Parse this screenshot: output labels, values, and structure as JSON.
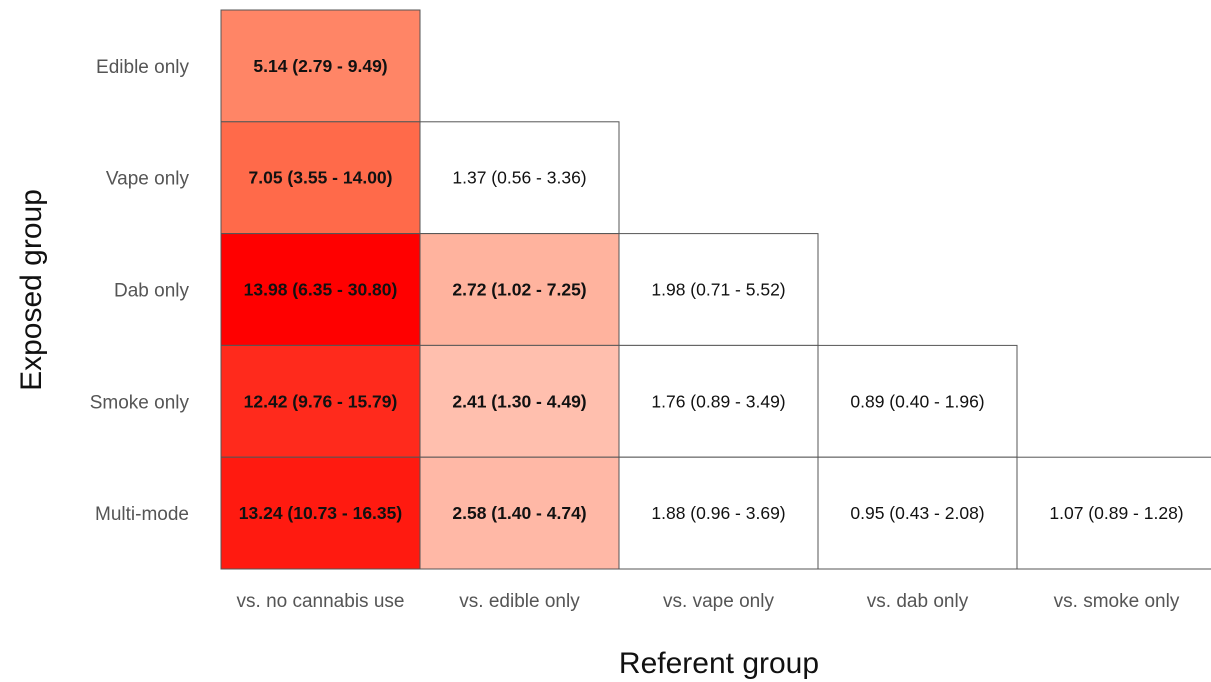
{
  "chart_data": {
    "type": "heatmap",
    "xlabel": "Referent group",
    "ylabel": "Exposed group",
    "columns": [
      "vs. no cannabis use",
      "vs. edible only",
      "vs. vape only",
      "vs. dab only",
      "vs. smoke only"
    ],
    "rows": [
      "Edible only",
      "Vape only",
      "Dab only",
      "Smoke only",
      "Multi-mode"
    ],
    "cells": [
      {
        "row": 0,
        "col": 0,
        "label": "5.14 (2.79 - 9.49)",
        "value": 5.14,
        "fill": "#ff8566",
        "bold": true
      },
      {
        "row": 1,
        "col": 0,
        "label": "7.05 (3.55 - 14.00)",
        "value": 7.05,
        "fill": "#ff6a4a",
        "bold": true
      },
      {
        "row": 1,
        "col": 1,
        "label": "1.37 (0.56 - 3.36)",
        "value": 1.37,
        "fill": "#ffffff",
        "bold": false
      },
      {
        "row": 2,
        "col": 0,
        "label": "13.98 (6.35 - 30.80)",
        "value": 13.98,
        "fill": "#ff0000",
        "bold": true
      },
      {
        "row": 2,
        "col": 1,
        "label": "2.72 (1.02 - 7.25)",
        "value": 2.72,
        "fill": "#ffb39e",
        "bold": true
      },
      {
        "row": 2,
        "col": 2,
        "label": "1.98 (0.71 - 5.52)",
        "value": 1.98,
        "fill": "#ffffff",
        "bold": false
      },
      {
        "row": 3,
        "col": 0,
        "label": "12.42 (9.76 - 15.79)",
        "value": 12.42,
        "fill": "#ff2a1c",
        "bold": true
      },
      {
        "row": 3,
        "col": 1,
        "label": "2.41 (1.30 - 4.49)",
        "value": 2.41,
        "fill": "#ffbfae",
        "bold": true
      },
      {
        "row": 3,
        "col": 2,
        "label": "1.76 (0.89 - 3.49)",
        "value": 1.76,
        "fill": "#ffffff",
        "bold": false
      },
      {
        "row": 3,
        "col": 3,
        "label": "0.89 (0.40 - 1.96)",
        "value": 0.89,
        "fill": "#ffffff",
        "bold": false
      },
      {
        "row": 4,
        "col": 0,
        "label": "13.24 (10.73 - 16.35)",
        "value": 13.24,
        "fill": "#ff1a10",
        "bold": true
      },
      {
        "row": 4,
        "col": 1,
        "label": "2.58 (1.40 - 4.74)",
        "value": 2.58,
        "fill": "#ffb8a6",
        "bold": true
      },
      {
        "row": 4,
        "col": 2,
        "label": "1.88 (0.96 - 3.69)",
        "value": 1.88,
        "fill": "#ffffff",
        "bold": false
      },
      {
        "row": 4,
        "col": 3,
        "label": "0.95 (0.43 - 2.08)",
        "value": 0.95,
        "fill": "#ffffff",
        "bold": false
      },
      {
        "row": 4,
        "col": 4,
        "label": "1.07 (0.89 - 1.28)",
        "value": 1.07,
        "fill": "#ffffff",
        "bold": false
      }
    ],
    "legend": "none",
    "grid": false
  }
}
